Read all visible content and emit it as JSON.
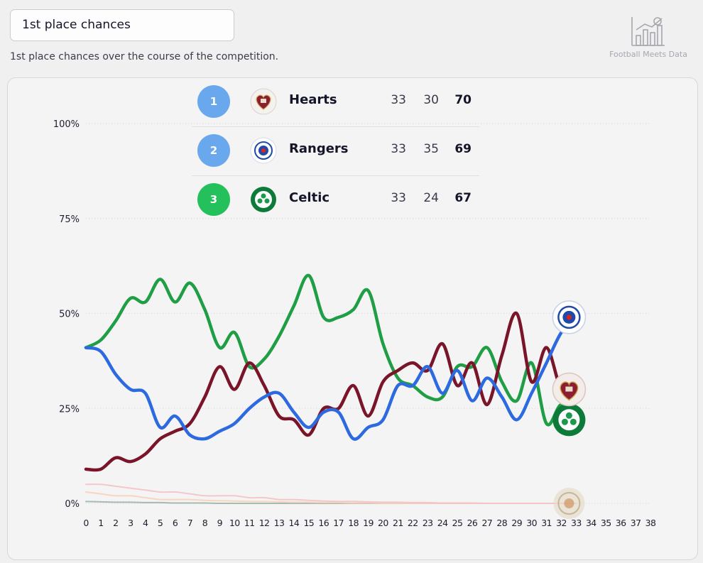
{
  "header": {
    "title": "1st place chances",
    "subtitle": "1st place chances over the course of the competition.",
    "brand": "Football Meets Data"
  },
  "icons": {
    "brand_logo": "chart-football-icon"
  },
  "standings": [
    {
      "rank": "1",
      "team": "Hearts",
      "col_a": "33",
      "col_b": "30",
      "points": "70",
      "rank_color": "#6aa8ee",
      "crest": "hearts-crest-icon"
    },
    {
      "rank": "2",
      "team": "Rangers",
      "col_a": "33",
      "col_b": "35",
      "points": "69",
      "rank_color": "#6aa8ee",
      "crest": "rangers-crest-icon"
    },
    {
      "rank": "3",
      "team": "Celtic",
      "col_a": "33",
      "col_b": "24",
      "points": "67",
      "rank_color": "#23c05c",
      "crest": "celtic-crest-icon"
    }
  ],
  "chart_data": {
    "type": "line",
    "title": "",
    "xlabel": "",
    "ylabel": "",
    "x_ticks": [
      "0",
      "1",
      "2",
      "3",
      "4",
      "5",
      "6",
      "7",
      "8",
      "9",
      "10",
      "11",
      "12",
      "13",
      "14",
      "15",
      "16",
      "17",
      "18",
      "19",
      "20",
      "21",
      "22",
      "23",
      "24",
      "25",
      "26",
      "27",
      "28",
      "29",
      "30",
      "31",
      "32",
      "33",
      "34",
      "35",
      "36",
      "37",
      "38"
    ],
    "y_ticks": [
      "0%",
      "25%",
      "50%",
      "75%",
      "100%"
    ],
    "xlim": [
      0,
      38
    ],
    "ylim": [
      0,
      100
    ],
    "grid": "horizontal dotted",
    "series": [
      {
        "name": "Celtic",
        "color": "#1f9e45",
        "values": [
          41,
          43,
          48,
          54,
          53,
          59,
          53,
          58,
          51,
          41,
          45,
          36,
          38,
          44,
          52,
          60,
          49,
          49,
          51,
          56,
          42,
          33,
          31,
          28,
          28,
          36,
          36,
          41,
          32,
          27,
          37,
          21,
          26,
          22
        ]
      },
      {
        "name": "Hearts",
        "color": "#7a1428",
        "values": [
          9,
          9,
          12,
          11,
          13,
          17,
          19,
          21,
          28,
          36,
          30,
          37,
          31,
          23,
          22,
          18,
          25,
          25,
          31,
          23,
          32,
          35,
          37,
          35,
          42,
          31,
          37,
          26,
          39,
          50,
          32,
          41,
          30,
          30
        ]
      },
      {
        "name": "Rangers",
        "color": "#2e6adf",
        "values": [
          41,
          40,
          34,
          30,
          29,
          20,
          23,
          18,
          17,
          19,
          21,
          25,
          28,
          29,
          24,
          20,
          24,
          24,
          17,
          20,
          22,
          31,
          31,
          36,
          29,
          35,
          27,
          33,
          28,
          22,
          29,
          37,
          45,
          49
        ]
      },
      {
        "name": "",
        "color": "#f3c2c8",
        "values": [
          5,
          5,
          4.5,
          4,
          3.5,
          3,
          3,
          2.5,
          2,
          2,
          2,
          1.5,
          1.5,
          1,
          1,
          0.8,
          0.6,
          0.5,
          0.5,
          0.4,
          0.3,
          0.3,
          0.2,
          0.2,
          0.1,
          0.1,
          0.1,
          0,
          0,
          0,
          0,
          0,
          0,
          0
        ]
      },
      {
        "name": "",
        "color": "#f7d2b8",
        "values": [
          3,
          2.5,
          2,
          2,
          1.5,
          1,
          1,
          1,
          0.8,
          0.7,
          0.6,
          0.5,
          0.5,
          0.4,
          0.3,
          0.3,
          0.2,
          0.2,
          0.1,
          0.1,
          0,
          0,
          0,
          0,
          0,
          0,
          0,
          0,
          0,
          0,
          0,
          0,
          0,
          0
        ]
      },
      {
        "name": "",
        "color": "#9fb5a6",
        "values": [
          0.5,
          0.4,
          0.3,
          0.3,
          0.2,
          0.2,
          0.1,
          0.1,
          0.1,
          0,
          0,
          0,
          0,
          0,
          0,
          0,
          0,
          0,
          0,
          0,
          0,
          0,
          0,
          0,
          0,
          0,
          0,
          0,
          0,
          0,
          0,
          0,
          0,
          0
        ]
      }
    ],
    "end_markers": [
      {
        "team": "Rangers",
        "icon": "rangers-crest-icon",
        "x": 33,
        "y": 49
      },
      {
        "team": "Hearts",
        "icon": "hearts-crest-icon",
        "x": 33,
        "y": 30
      },
      {
        "team": "Celtic",
        "icon": "celtic-crest-icon",
        "x": 33,
        "y": 22
      },
      {
        "team": "",
        "icon": "club-crest-icon",
        "x": 33,
        "y": 0
      }
    ]
  }
}
